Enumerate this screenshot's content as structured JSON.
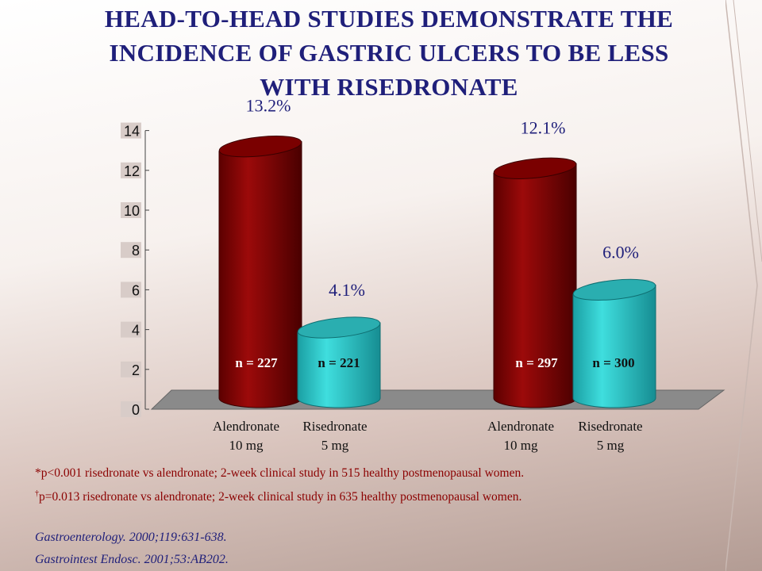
{
  "title_lines": [
    "HEAD-TO-HEAD STUDIES DEMONSTRATE THE",
    "INCIDENCE OF GASTRIC ULCERS TO BE LESS",
    "WITH RISEDRONATE"
  ],
  "chart_data": {
    "type": "bar",
    "ylim": [
      0,
      14
    ],
    "yticks": [
      "0",
      "2",
      "4",
      "6",
      "8",
      "10",
      "12",
      "14"
    ],
    "groups": [
      {
        "bars": [
          {
            "label_line1": "Alendronate",
            "label_line2": "10 mg",
            "value": 13.2,
            "value_label": "13.2%",
            "n_label": "n = 227",
            "color": "#8b0000"
          },
          {
            "label_line1": "Risedronate",
            "label_line2": "5 mg",
            "value": 4.1,
            "value_label": "4.1%",
            "n_label": "n = 221",
            "color": "#2fc9c9"
          }
        ]
      },
      {
        "bars": [
          {
            "label_line1": "Alendronate",
            "label_line2": "10 mg",
            "value": 12.1,
            "value_label": "12.1%",
            "n_label": "n = 297",
            "color": "#8b0000"
          },
          {
            "label_line1": "Risedronate",
            "label_line2": "5 mg",
            "value": 6.0,
            "value_label": "6.0%",
            "n_label": "n = 300",
            "color": "#2fc9c9"
          }
        ]
      }
    ],
    "grid": false
  },
  "footnotes": {
    "note1": "*p<0.001 risedronate vs alendronate; 2-week clinical  study in 515 healthy  postmenopausal women.",
    "note2_mark": "†",
    "note2": "p=0.013 risedronate vs alendronate; 2-week clinical  study in 635 healthy  postmenopausal women."
  },
  "references": [
    "Gastroenterology. 2000;119:631-638.",
    "Gastrointest Endosc. 2001;53:AB202."
  ],
  "colors": {
    "title": "#1f1f7a",
    "alendronate": "#8b0000",
    "risedronate": "#2fc9c9",
    "footnote": "#8b0000",
    "reference": "#1f1f7a"
  }
}
